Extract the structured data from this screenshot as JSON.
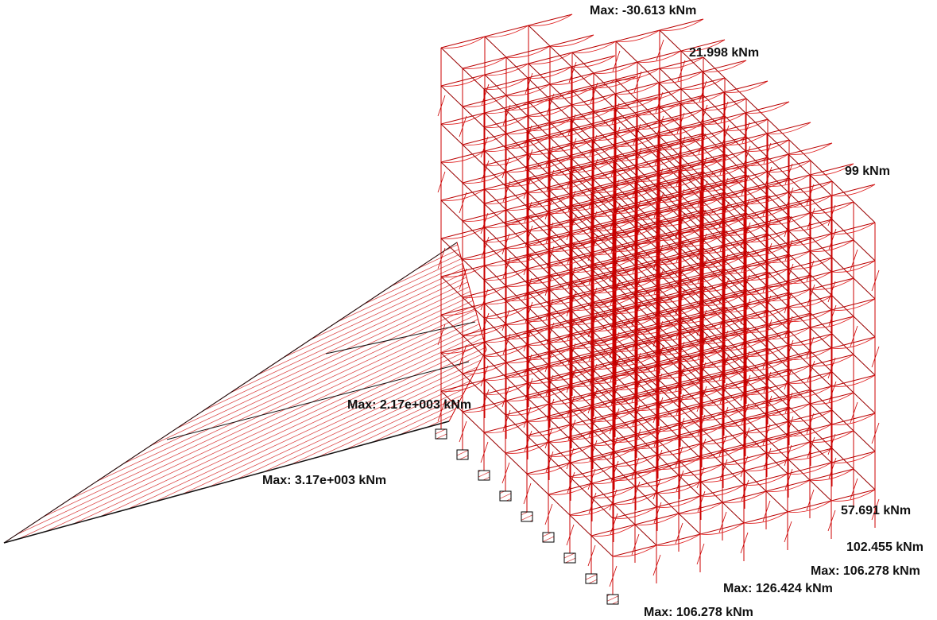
{
  "diagram": {
    "labels": [
      "Max: -30.613 kNm",
      "21.998 kNm",
      "Max: 2.17e+003 kNm",
      "Max: 3.17e+003 kNm",
      "99 kNm",
      "57.691 kNm",
      "102.455 kNm",
      "Max: 106.278 kNm",
      "Max: 126.424 kNm",
      "Max: 106.278 kNm"
    ]
  }
}
